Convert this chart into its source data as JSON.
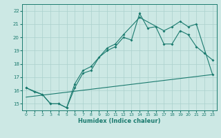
{
  "xlabel": "Humidex (Indice chaleur)",
  "bg_color": "#cce8e4",
  "grid_color": "#aad0cc",
  "line_color": "#1a7a6e",
  "xlim": [
    -0.5,
    23.5
  ],
  "ylim": [
    14.5,
    22.5
  ],
  "xticks": [
    0,
    1,
    2,
    3,
    4,
    5,
    6,
    7,
    8,
    9,
    10,
    11,
    12,
    13,
    14,
    15,
    16,
    17,
    18,
    19,
    20,
    21,
    22,
    23
  ],
  "yticks": [
    15,
    16,
    17,
    18,
    19,
    20,
    21,
    22
  ],
  "line1_x": [
    0,
    1,
    2,
    3,
    4,
    5,
    6,
    7,
    8,
    9,
    10,
    11,
    12,
    13,
    14,
    15,
    16,
    17,
    18,
    19,
    20,
    21,
    22,
    23
  ],
  "line1_y": [
    16.2,
    15.9,
    15.7,
    15.0,
    15.0,
    14.7,
    16.2,
    17.3,
    17.5,
    18.5,
    19.0,
    19.3,
    20.0,
    19.8,
    21.8,
    20.7,
    20.8,
    19.5,
    19.5,
    20.5,
    20.2,
    19.3,
    18.8,
    18.3
  ],
  "line2_x": [
    0,
    2,
    3,
    4,
    5,
    6,
    7,
    8,
    10,
    11,
    12,
    14,
    17,
    18,
    19,
    20,
    21,
    23
  ],
  "line2_y": [
    16.2,
    15.7,
    15.0,
    15.0,
    14.7,
    16.5,
    17.5,
    17.8,
    19.2,
    19.5,
    20.2,
    21.5,
    20.5,
    20.8,
    21.2,
    20.8,
    21.0,
    17.2
  ],
  "line3_x": [
    0,
    23
  ],
  "line3_y": [
    15.5,
    17.2
  ]
}
